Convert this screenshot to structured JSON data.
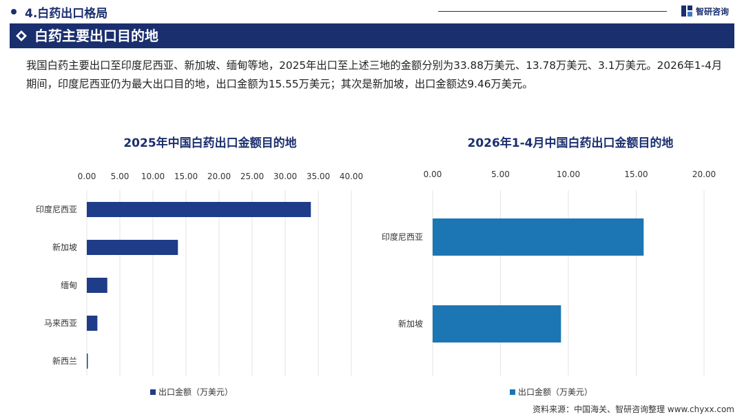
{
  "header": {
    "section_title": "4.白药出口格局",
    "logo_text": "智研咨询"
  },
  "banner": {
    "title": "白药主要出口目的地"
  },
  "description": "我国白药主要出口至印度尼西亚、新加坡、缅甸等地，2025年出口至上述三地的金额分别为33.88万美元、13.78万美元、3.1万美元。2026年1-4月期间，印度尼西亚仍为最大出口目的地，出口金额为15.55万美元；其次是新加坡，出口金额达9.46万美元。",
  "colors": {
    "navy": "#1a2f6e",
    "left_bar": "#1f3c88",
    "right_bar": "#1c76b4"
  },
  "chart_data": [
    {
      "type": "bar",
      "orientation": "horizontal",
      "title": "2025年中国白药出口金额目的地",
      "categories": [
        "印度尼西亚",
        "新加坡",
        "缅甸",
        "马来西亚",
        "新西兰"
      ],
      "series": [
        {
          "name": "出口金额（万美元）",
          "values": [
            33.88,
            13.78,
            3.1,
            1.6,
            0.1
          ]
        }
      ],
      "xlim": [
        0,
        40
      ],
      "ticks": [
        "0.00",
        "5.00",
        "10.00",
        "15.00",
        "20.00",
        "25.00",
        "30.00",
        "35.00",
        "40.00"
      ],
      "grid": true,
      "legend": "bottom"
    },
    {
      "type": "bar",
      "orientation": "horizontal",
      "title": "2026年1-4月中国白药出口金额目的地",
      "categories": [
        "印度尼西亚",
        "新加坡"
      ],
      "series": [
        {
          "name": "出口金额（万美元）",
          "values": [
            15.55,
            9.46
          ]
        }
      ],
      "xlim": [
        0,
        20
      ],
      "ticks": [
        "0.00",
        "5.00",
        "10.00",
        "15.00",
        "20.00"
      ],
      "grid": true,
      "legend": "bottom"
    }
  ],
  "source": "资料来源：中国海关、智研咨询整理  www.chyxx.com"
}
